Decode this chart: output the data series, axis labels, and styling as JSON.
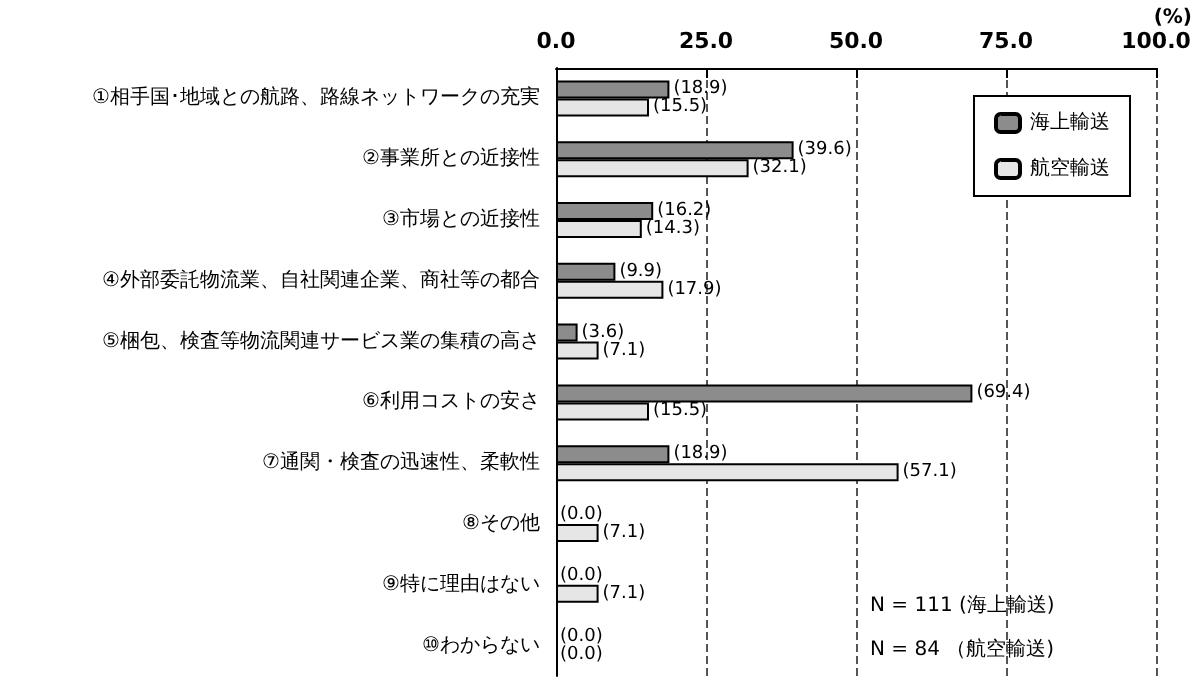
{
  "chart_data": {
    "type": "bar",
    "orientation": "horizontal",
    "xlabel": "(%)",
    "categories": [
      "①相手国･地域との航路、路線ネットワークの充実",
      "②事業所との近接性",
      "③市場との近接性",
      "④外部委託物流業、自社関連企業、商社等の都合",
      "⑤梱包、検査等物流関連サービス業の集積の高さ",
      "⑥利用コストの安さ",
      "⑦通関・検査の迅速性、柔軟性",
      "⑧その他",
      "⑨特に理由はない",
      "⑩わからない"
    ],
    "series": [
      {
        "name": "海上輸送",
        "color": "#8c8c8c",
        "values": [
          18.9,
          39.6,
          16.2,
          9.9,
          3.6,
          69.4,
          18.9,
          0.0,
          0.0,
          0.0
        ],
        "value_labels": [
          "(18.9)",
          "(39.6)",
          "(16.2)",
          "(9.9)",
          "(3.6)",
          "(69.4)",
          "(18.9)",
          "(0.0)",
          "(0.0)",
          "(0.0)"
        ]
      },
      {
        "name": "航空輸送",
        "color": "#e6e6e6",
        "values": [
          15.5,
          32.1,
          14.3,
          17.9,
          7.1,
          15.5,
          57.1,
          7.1,
          7.1,
          0.0
        ],
        "value_labels": [
          "(15.5)",
          "(32.1)",
          "(14.3)",
          "(17.9)",
          "(7.1)",
          "(15.5)",
          "(57.1)",
          "(7.1)",
          "(7.1)",
          "(0.0)"
        ]
      }
    ],
    "xlim": [
      0,
      100
    ],
    "xticks": [
      {
        "value": 0,
        "label": "0.0"
      },
      {
        "value": 25,
        "label": "25.0"
      },
      {
        "value": 50,
        "label": "50.0"
      },
      {
        "value": 75,
        "label": "75.0"
      },
      {
        "value": 100,
        "label": "100.0"
      }
    ],
    "grid": "x",
    "legend": "top right",
    "annotations": [
      "N = 111 (海上輸送)",
      "N = 84 （航空輸送)"
    ]
  }
}
